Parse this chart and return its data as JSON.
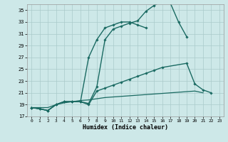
{
  "xlabel": "Humidex (Indice chaleur)",
  "bg_color": "#cde8e8",
  "grid_color": "#aacaca",
  "line_color": "#1a6a62",
  "xlim": [
    -0.5,
    23.5
  ],
  "ylim": [
    17,
    36
  ],
  "xticks": [
    0,
    1,
    2,
    3,
    4,
    5,
    6,
    7,
    8,
    9,
    10,
    11,
    12,
    13,
    14,
    15,
    16,
    17,
    18,
    19,
    20,
    21,
    22,
    23
  ],
  "yticks": [
    17,
    19,
    21,
    23,
    25,
    27,
    29,
    31,
    33,
    35
  ],
  "series": [
    {
      "x": [
        0,
        1,
        2,
        3,
        4,
        5,
        6,
        7,
        8,
        9,
        10,
        11,
        12,
        13,
        14,
        15,
        16,
        17,
        18,
        19
      ],
      "y": [
        18.5,
        18.3,
        18.0,
        19.0,
        19.5,
        19.5,
        19.5,
        19.2,
        22.0,
        30.0,
        31.8,
        32.3,
        32.8,
        33.2,
        34.8,
        35.8,
        36.5,
        36.2,
        33.0,
        30.5
      ],
      "marker": true,
      "lw": 1.0
    },
    {
      "x": [
        0,
        1,
        2,
        3,
        4,
        5,
        6,
        7,
        8,
        9,
        10,
        11,
        12,
        13,
        14
      ],
      "y": [
        18.5,
        18.3,
        18.0,
        19.0,
        19.5,
        19.5,
        19.5,
        27.0,
        30.0,
        32.0,
        32.5,
        33.0,
        33.0,
        32.5,
        32.0
      ],
      "marker": true,
      "lw": 1.0
    },
    {
      "x": [
        0,
        1,
        2,
        3,
        4,
        5,
        6,
        7,
        8,
        9,
        10,
        11,
        12,
        13,
        14,
        15,
        16,
        19,
        20,
        21,
        22
      ],
      "y": [
        18.5,
        18.3,
        18.0,
        19.0,
        19.5,
        19.5,
        19.5,
        19.0,
        21.3,
        21.8,
        22.3,
        22.8,
        23.3,
        23.8,
        24.3,
        24.8,
        25.3,
        26.0,
        22.5,
        21.5,
        21.0
      ],
      "marker": true,
      "lw": 1.0
    },
    {
      "x": [
        0,
        1,
        2,
        3,
        4,
        5,
        6,
        7,
        8,
        9,
        10,
        11,
        12,
        13,
        14,
        15,
        16,
        17,
        18,
        19,
        20,
        21
      ],
      "y": [
        18.5,
        18.5,
        18.5,
        19.0,
        19.3,
        19.5,
        19.7,
        19.8,
        20.0,
        20.2,
        20.3,
        20.4,
        20.5,
        20.6,
        20.7,
        20.8,
        20.9,
        21.0,
        21.1,
        21.2,
        21.3,
        21.0
      ],
      "marker": false,
      "lw": 0.9
    }
  ]
}
